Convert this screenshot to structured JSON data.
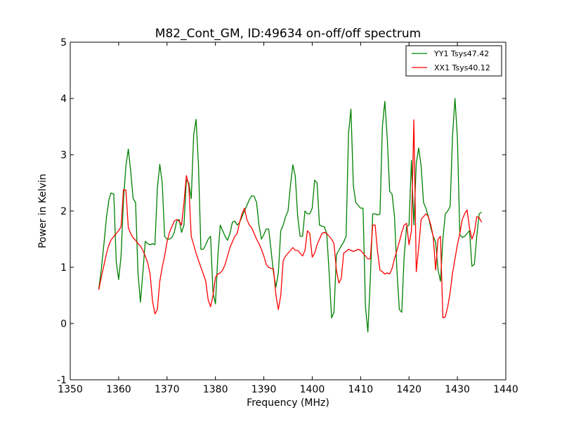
{
  "chart_data": {
    "type": "line",
    "title": "M82_Cont_GM, ID:49634 on-off/off spectrum",
    "xlabel": "Frequency (MHz)",
    "ylabel": "Power in Kelvin",
    "xlim": [
      1350,
      1440
    ],
    "ylim": [
      -1,
      5
    ],
    "x_ticks": [
      1350,
      1360,
      1370,
      1380,
      1390,
      1400,
      1410,
      1420,
      1430,
      1440
    ],
    "y_ticks": [
      -1,
      0,
      1,
      2,
      3,
      4,
      5
    ],
    "grid": false,
    "legend_position": "top-right",
    "series": [
      {
        "name": "YY1 Tsys47.42",
        "color": "#008000",
        "x": [
          1355.9,
          1356.4,
          1357.0,
          1357.5,
          1358.0,
          1358.4,
          1359.0,
          1359.5,
          1360.0,
          1360.5,
          1361.0,
          1361.5,
          1362.0,
          1362.5,
          1363.0,
          1363.5,
          1364.0,
          1364.5,
          1365.0,
          1365.5,
          1366.0,
          1366.5,
          1367.0,
          1367.5,
          1368.0,
          1368.5,
          1369.0,
          1369.5,
          1370.0,
          1370.5,
          1371.0,
          1371.5,
          1372.0,
          1372.5,
          1373.0,
          1373.5,
          1374.0,
          1374.5,
          1375.0,
          1375.5,
          1376.0,
          1376.5,
          1377.0,
          1377.5,
          1378.0,
          1378.5,
          1379.0,
          1379.5,
          1380.0,
          1380.5,
          1381.0,
          1381.5,
          1382.0,
          1382.5,
          1383.0,
          1383.5,
          1384.0,
          1384.5,
          1385.0,
          1385.5,
          1386.0,
          1386.5,
          1387.0,
          1387.5,
          1388.0,
          1388.5,
          1389.0,
          1389.5,
          1390.0,
          1390.5,
          1391.0,
          1391.5,
          1392.0,
          1392.5,
          1393.0,
          1393.5,
          1394.0,
          1394.5,
          1395.0,
          1395.5,
          1396.0,
          1396.5,
          1397.0,
          1397.5,
          1398.0,
          1398.5,
          1399.0,
          1399.5,
          1400.0,
          1400.5,
          1401.0,
          1401.5,
          1402.0,
          1402.5,
          1403.0,
          1403.5,
          1404.0,
          1404.5,
          1405.0,
          1405.5,
          1406.0,
          1406.5,
          1407.0,
          1407.5,
          1408.0,
          1408.5,
          1409.0,
          1409.5,
          1410.0,
          1410.5,
          1411.0,
          1411.5,
          1412.0,
          1412.5,
          1413.0,
          1413.5,
          1414.0,
          1414.5,
          1415.0,
          1415.5,
          1416.0,
          1416.5,
          1417.0,
          1417.5,
          1418.0,
          1418.5,
          1419.0,
          1419.5,
          1420.0,
          1420.5,
          1421.0,
          1421.5,
          1422.0,
          1422.5,
          1423.0,
          1423.5,
          1424.0,
          1424.5,
          1425.0,
          1425.5,
          1426.0,
          1426.5,
          1427.0,
          1427.5,
          1428.0,
          1428.5,
          1429.0,
          1429.5,
          1430.0,
          1430.5,
          1431.0,
          1431.5,
          1432.0,
          1432.5,
          1433.0,
          1433.5,
          1434.0,
          1434.5,
          1435.0
        ],
        "values": [
          0.62,
          0.95,
          1.45,
          1.9,
          2.2,
          2.32,
          2.3,
          1.1,
          0.78,
          1.2,
          2.2,
          2.8,
          3.1,
          2.7,
          2.22,
          2.15,
          0.9,
          0.38,
          0.9,
          1.46,
          1.42,
          1.4,
          1.42,
          1.4,
          2.4,
          2.83,
          2.5,
          1.55,
          1.5,
          1.5,
          1.53,
          1.62,
          1.82,
          1.85,
          1.62,
          1.75,
          2.55,
          2.5,
          2.22,
          3.35,
          3.63,
          2.8,
          1.32,
          1.32,
          1.4,
          1.5,
          1.55,
          0.55,
          0.35,
          1.2,
          1.75,
          1.65,
          1.55,
          1.48,
          1.6,
          1.8,
          1.82,
          1.75,
          1.8,
          1.9,
          2.0,
          2.1,
          2.2,
          2.27,
          2.26,
          2.15,
          1.75,
          1.5,
          1.58,
          1.68,
          1.68,
          1.3,
          0.9,
          0.65,
          0.9,
          1.65,
          1.75,
          1.9,
          2.0,
          2.45,
          2.82,
          2.62,
          1.9,
          1.55,
          1.55,
          2.0,
          1.95,
          1.95,
          2.05,
          2.55,
          2.5,
          1.75,
          1.73,
          1.72,
          1.6,
          0.9,
          0.1,
          0.2,
          1.22,
          1.3,
          1.38,
          1.45,
          1.55,
          3.38,
          3.81,
          2.45,
          2.15,
          2.1,
          2.05,
          2.05,
          0.3,
          -0.15,
          0.78,
          1.95,
          1.95,
          1.93,
          1.95,
          3.5,
          3.95,
          3.3,
          2.35,
          2.3,
          1.9,
          0.95,
          0.25,
          0.2,
          1.2,
          1.72,
          1.75,
          2.9,
          1.75,
          2.85,
          3.12,
          2.8,
          2.15,
          2.05,
          1.9,
          1.7,
          1.55,
          1.45,
          0.95,
          0.75,
          1.5,
          1.95,
          2.0,
          2.08,
          3.35,
          4.0,
          3.3,
          1.58,
          1.53,
          1.55,
          1.6,
          1.65,
          1.02,
          1.05,
          1.55,
          1.95,
          1.98
        ]
      },
      {
        "name": "XX1 Tsys40.12",
        "color": "#ff0000",
        "x": [
          1355.9,
          1356.4,
          1357.0,
          1357.5,
          1358.0,
          1358.4,
          1359.0,
          1359.5,
          1360.0,
          1360.5,
          1361.0,
          1361.5,
          1362.0,
          1362.5,
          1363.0,
          1363.5,
          1364.0,
          1364.5,
          1365.0,
          1365.5,
          1366.0,
          1366.5,
          1367.0,
          1367.5,
          1368.0,
          1368.5,
          1369.0,
          1369.5,
          1370.0,
          1370.5,
          1371.0,
          1371.5,
          1372.0,
          1372.5,
          1373.0,
          1373.5,
          1374.0,
          1374.5,
          1375.0,
          1375.5,
          1376.0,
          1376.5,
          1377.0,
          1377.5,
          1378.0,
          1378.5,
          1379.0,
          1379.5,
          1380.0,
          1380.5,
          1381.0,
          1381.5,
          1382.0,
          1382.5,
          1383.0,
          1383.5,
          1384.0,
          1384.5,
          1385.0,
          1385.5,
          1386.0,
          1386.5,
          1387.0,
          1387.5,
          1388.0,
          1388.5,
          1389.0,
          1389.5,
          1390.0,
          1390.5,
          1391.0,
          1391.5,
          1392.0,
          1392.5,
          1393.0,
          1393.5,
          1394.0,
          1394.5,
          1395.0,
          1395.5,
          1396.0,
          1396.5,
          1397.0,
          1397.5,
          1398.0,
          1398.5,
          1399.0,
          1399.5,
          1400.0,
          1400.5,
          1401.0,
          1401.5,
          1402.0,
          1402.5,
          1403.0,
          1403.5,
          1404.0,
          1404.5,
          1405.0,
          1405.5,
          1406.0,
          1406.5,
          1407.0,
          1407.5,
          1408.0,
          1408.5,
          1409.0,
          1409.5,
          1410.0,
          1410.5,
          1411.0,
          1411.5,
          1412.0,
          1412.5,
          1413.0,
          1413.5,
          1414.0,
          1414.5,
          1415.0,
          1415.5,
          1416.0,
          1416.5,
          1417.0,
          1417.5,
          1418.0,
          1418.5,
          1419.0,
          1419.5,
          1420.0,
          1420.5,
          1421.0,
          1421.5,
          1422.0,
          1422.5,
          1423.0,
          1423.5,
          1424.0,
          1424.5,
          1425.0,
          1425.5,
          1426.0,
          1426.5,
          1427.0,
          1427.5,
          1428.0,
          1428.5,
          1429.0,
          1429.5,
          1430.0,
          1430.5,
          1431.0,
          1431.5,
          1432.0,
          1432.5,
          1433.0,
          1433.5,
          1434.0,
          1434.5,
          1435.0
        ],
        "values": [
          0.6,
          0.82,
          1.05,
          1.25,
          1.4,
          1.48,
          1.55,
          1.6,
          1.65,
          1.72,
          2.38,
          2.37,
          1.7,
          1.6,
          1.52,
          1.48,
          1.42,
          1.38,
          1.3,
          1.2,
          1.08,
          0.88,
          0.4,
          0.17,
          0.25,
          0.75,
          1.0,
          1.2,
          1.45,
          1.62,
          1.72,
          1.82,
          1.85,
          1.82,
          1.75,
          2.15,
          2.63,
          2.45,
          1.55,
          1.4,
          1.25,
          1.12,
          1.0,
          0.88,
          0.75,
          0.42,
          0.3,
          0.5,
          0.82,
          0.88,
          0.9,
          0.95,
          1.05,
          1.2,
          1.35,
          1.45,
          1.55,
          1.6,
          1.8,
          1.95,
          2.05,
          1.85,
          1.75,
          1.7,
          1.6,
          1.5,
          1.42,
          1.32,
          1.2,
          1.05,
          1.0,
          0.98,
          0.97,
          0.5,
          0.25,
          0.5,
          1.12,
          1.2,
          1.25,
          1.3,
          1.35,
          1.3,
          1.3,
          1.25,
          1.2,
          1.3,
          1.65,
          1.6,
          1.18,
          1.25,
          1.4,
          1.5,
          1.6,
          1.62,
          1.6,
          1.55,
          1.5,
          1.42,
          0.95,
          0.72,
          0.8,
          1.25,
          1.28,
          1.32,
          1.3,
          1.28,
          1.3,
          1.32,
          1.3,
          1.25,
          1.2,
          1.15,
          1.15,
          1.75,
          1.75,
          1.28,
          0.95,
          0.92,
          0.88,
          0.9,
          0.88,
          0.98,
          1.15,
          1.3,
          1.45,
          1.62,
          1.75,
          1.78,
          1.4,
          1.65,
          3.62,
          0.92,
          1.35,
          1.85,
          1.9,
          1.95,
          1.9,
          1.75,
          1.55,
          0.95,
          1.5,
          1.55,
          0.1,
          0.12,
          0.3,
          0.55,
          0.9,
          1.15,
          1.4,
          1.6,
          1.85,
          1.95,
          2.02,
          1.7,
          1.5,
          1.62,
          1.9,
          1.88,
          1.8
        ]
      }
    ]
  }
}
